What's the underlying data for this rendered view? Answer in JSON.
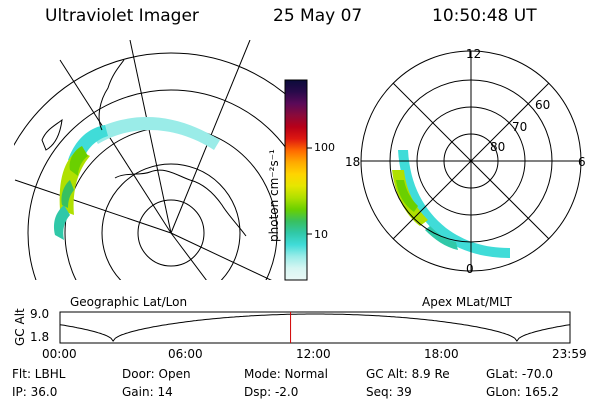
{
  "header": {
    "title": "Ultraviolet Imager",
    "date": "25 May 07",
    "time": "10:50:48 UT"
  },
  "colorbar": {
    "unit_label": "photon cm⁻²s⁻¹",
    "ticks": [
      "100",
      "10"
    ],
    "colors": [
      "#0b0b3a",
      "#280a4a",
      "#5a0a58",
      "#8a0a3a",
      "#b80018",
      "#de1810",
      "#ff6a00",
      "#ffaa00",
      "#ffd400",
      "#e6e600",
      "#b0e000",
      "#6ad000",
      "#38c060",
      "#30c8a8",
      "#40dcd8",
      "#9aece8",
      "#d6f6f2",
      "#eaf8f6"
    ]
  },
  "map_left": {
    "caption": "Geographic Lat/Lon"
  },
  "map_right": {
    "caption": "Apex MLat/MLT",
    "mlt_labels": {
      "top": "12",
      "left": "18",
      "right": "6",
      "bottom": "0"
    },
    "lat_labels": [
      "60",
      "70",
      "80"
    ]
  },
  "timeline": {
    "axis_label": "GC Alt",
    "y_ticks": [
      "9.0",
      "1.8"
    ],
    "x_ticks": [
      "00:00",
      "06:00",
      "12:00",
      "18:00",
      "23:59"
    ],
    "marker_time_hours": 10.85
  },
  "status": {
    "flt": "Flt: LBHL",
    "ip": "IP: 36.0",
    "door": "Door: Open",
    "gain": "Gain: 14",
    "mode": "Mode: Normal",
    "dsp": "Dsp:    -2.0",
    "gc_alt": "GC Alt: 8.9 Re",
    "seq": "Seq: 39",
    "glat": "GLat: -70.0",
    "glon": "GLon: 165.2"
  }
}
